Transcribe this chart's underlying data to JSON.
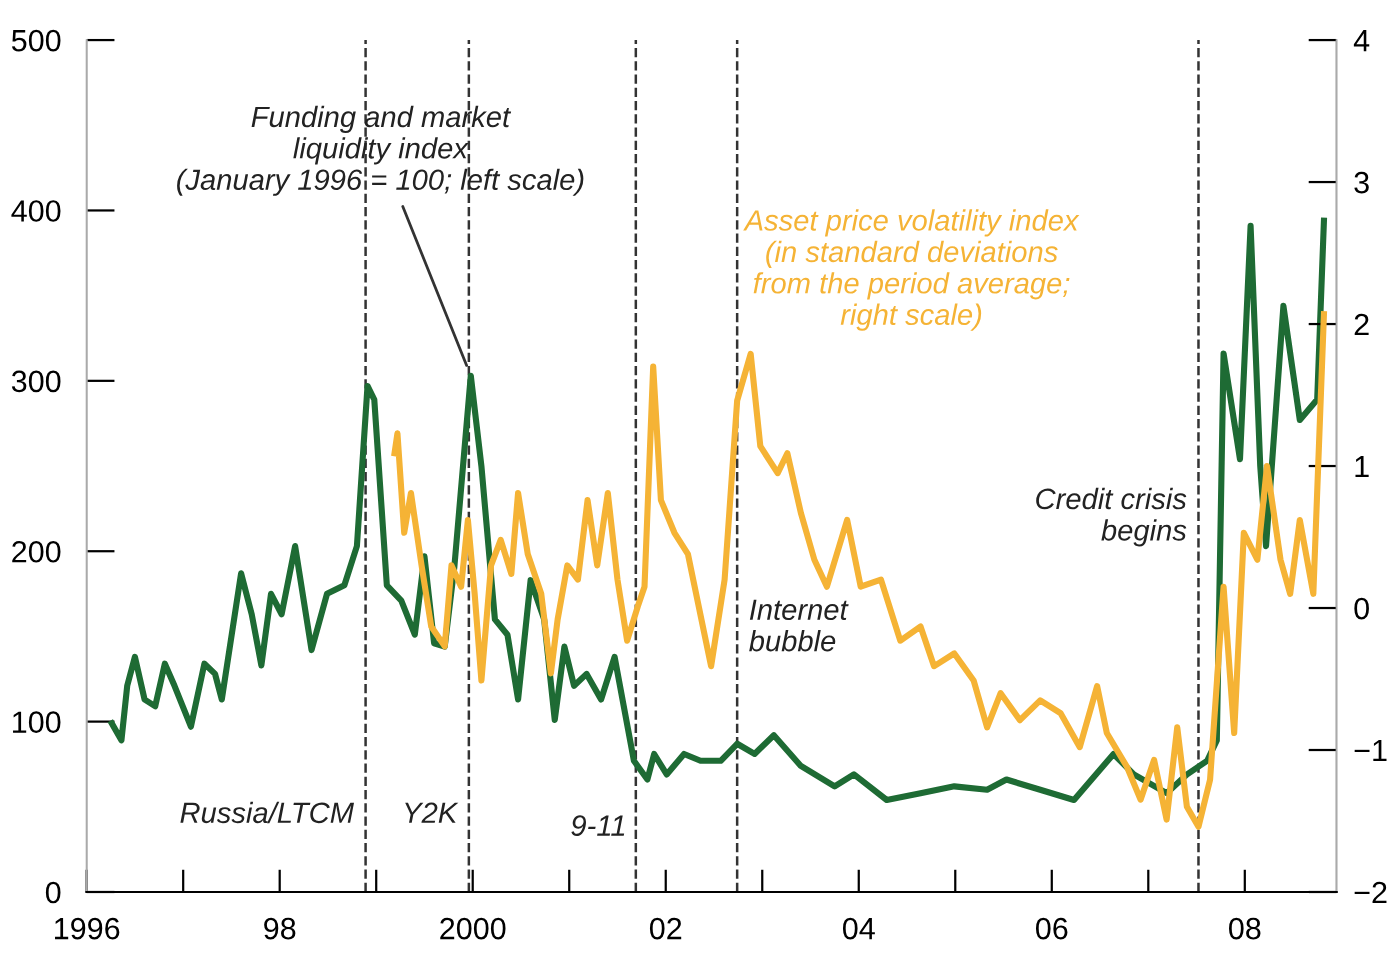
{
  "chart_data": {
    "type": "line",
    "series": [
      {
        "name": "Funding and market\nliquidity index\n(January 1996 = 100; left scale)",
        "color": "#1e6b34",
        "x": [
          1996.26,
          1996.36,
          1996.42,
          1996.5,
          1996.6,
          1996.71,
          1996.81,
          1996.91,
          1997.08,
          1997.22,
          1997.33,
          1997.4,
          1997.6,
          1997.71,
          1997.81,
          1997.91,
          1998.02,
          1998.16,
          1998.33,
          1998.49,
          1998.67,
          1998.8,
          1998.91,
          1998.98,
          1999.11,
          1999.26,
          1999.4,
          1999.5,
          1999.6,
          1999.71,
          1999.81,
          1999.98,
          2000.09,
          2000.23,
          2000.36,
          2000.47,
          2000.6,
          2000.74,
          2000.85,
          2000.95,
          2001.05,
          2001.18,
          2001.33,
          2001.47,
          2001.67,
          2001.81,
          2001.88,
          2002.01,
          2002.19,
          2002.36,
          2002.57,
          2002.74,
          2002.92,
          2003.12,
          2003.4,
          2003.75,
          2003.95,
          2004.29,
          2004.64,
          2004.99,
          2005.33,
          2005.53,
          2005.88,
          2006.23,
          2006.64,
          2006.85,
          2007.19,
          2007.4,
          2007.61,
          2007.71,
          2007.78,
          2007.95,
          2008.06,
          2008.16,
          2008.22,
          2008.4,
          2008.57,
          2008.75,
          2008.82
        ],
        "values": [
          99,
          89,
          121,
          138,
          113,
          109,
          134,
          121,
          97,
          134,
          128,
          113,
          187,
          163,
          133,
          175,
          163,
          203,
          142,
          175,
          180,
          203,
          297,
          289,
          180,
          171,
          151,
          197,
          146,
          144,
          191,
          303,
          250,
          160,
          151,
          113,
          183,
          160,
          101,
          144,
          121,
          128,
          113,
          138,
          77,
          66,
          81,
          69,
          81,
          77,
          77,
          87,
          81,
          92,
          74,
          62,
          69,
          54,
          58,
          62,
          60,
          66,
          60,
          54,
          81,
          69,
          58,
          69,
          77,
          89,
          316,
          254,
          391,
          250,
          203,
          344,
          277,
          289,
          394
        ]
      },
      {
        "name": "Asset price volatility index\n(in standard deviations\nfrom the period average;\nright scale)",
        "color": "#f5b335",
        "axis": "y2",
        "x": [
          1999.19,
          1999.22,
          1999.29,
          1999.36,
          1999.47,
          1999.57,
          1999.71,
          1999.78,
          1999.88,
          1999.95,
          2000.02,
          2000.09,
          2000.19,
          2000.29,
          2000.4,
          2000.47,
          2000.57,
          2000.71,
          2000.81,
          2000.88,
          2000.98,
          2001.09,
          2001.19,
          2001.29,
          2001.4,
          2001.5,
          2001.6,
          2001.71,
          2001.78,
          2001.87,
          2001.95,
          2002.09,
          2002.23,
          2002.4,
          2002.47,
          2002.61,
          2002.74,
          2002.88,
          2002.98,
          2003.16,
          2003.26,
          2003.4,
          2003.54,
          2003.67,
          2003.88,
          2004.02,
          2004.23,
          2004.43,
          2004.64,
          2004.78,
          2004.99,
          2005.19,
          2005.33,
          2005.47,
          2005.67,
          2005.88,
          2006.09,
          2006.29,
          2006.47,
          2006.57,
          2006.78,
          2006.92,
          2007.06,
          2007.19,
          2007.3,
          2007.4,
          2007.52,
          2007.64,
          2007.78,
          2007.89,
          2007.99,
          2008.13,
          2008.23,
          2008.37,
          2008.47,
          2008.57,
          2008.71,
          2008.82
        ],
        "values": [
          1.09,
          1.23,
          0.53,
          0.81,
          0.3,
          -0.13,
          -0.27,
          0.3,
          0.15,
          0.62,
          0.1,
          -0.51,
          0.3,
          0.48,
          0.24,
          0.81,
          0.38,
          0.1,
          -0.46,
          -0.08,
          0.3,
          0.2,
          0.76,
          0.3,
          0.81,
          0.2,
          -0.23,
          0.01,
          0.15,
          1.7,
          0.76,
          0.53,
          0.38,
          -0.18,
          -0.41,
          0.2,
          1.46,
          1.79,
          1.14,
          0.95,
          1.09,
          0.67,
          0.34,
          0.15,
          0.62,
          0.15,
          0.2,
          -0.23,
          -0.13,
          -0.41,
          -0.32,
          -0.51,
          -0.84,
          -0.6,
          -0.79,
          -0.65,
          -0.74,
          -0.98,
          -0.55,
          -0.88,
          -1.12,
          -1.35,
          -1.07,
          -1.49,
          -0.84,
          -1.4,
          -1.54,
          -1.21,
          0.15,
          -0.88,
          0.53,
          0.34,
          1.0,
          0.34,
          0.1,
          0.62,
          0.1,
          2.07
        ]
      }
    ],
    "xlim": [
      1996,
      2008.95
    ],
    "xticks": [
      {
        "value": 1996,
        "label": "1996"
      },
      {
        "value": 1997,
        "label": null
      },
      {
        "value": 1998,
        "label": "98"
      },
      {
        "value": 1999,
        "label": null
      },
      {
        "value": 2000,
        "label": "2000"
      },
      {
        "value": 2001,
        "label": null
      },
      {
        "value": 2002,
        "label": "02"
      },
      {
        "value": 2003,
        "label": null
      },
      {
        "value": 2004,
        "label": "04"
      },
      {
        "value": 2005,
        "label": null
      },
      {
        "value": 2006,
        "label": "06"
      },
      {
        "value": 2007,
        "label": null
      },
      {
        "value": 2008,
        "label": "08"
      }
    ],
    "ylim": [
      0,
      500
    ],
    "yticks": [
      0,
      100,
      200,
      300,
      400,
      500
    ],
    "y2lim": [
      -2,
      4
    ],
    "y2ticks": [
      {
        "value": -2,
        "label": "−2"
      },
      {
        "value": -1,
        "label": "−1"
      },
      0,
      1,
      2,
      3,
      4
    ],
    "ref_lines": [
      {
        "axis": "x",
        "value": 1998.89,
        "label": "Russia/LTCM",
        "line_style": "dashed"
      },
      {
        "axis": "x",
        "value": 1999.96,
        "label": "Y2K",
        "line_style": "dashed"
      },
      {
        "axis": "x",
        "value": 2001.69,
        "line_style": "dashed"
      },
      {
        "axis": "x",
        "value": 2002.74,
        "label": "Internet\nbubble",
        "line_style": "dashed"
      },
      {
        "axis": "x",
        "value": 2007.52,
        "label": "Credit crisis\nbegins",
        "line_style": "dashed"
      }
    ],
    "annotations": [
      "9-11"
    ],
    "grid": false,
    "legend": false,
    "marker": "none",
    "line_style": "solid"
  }
}
